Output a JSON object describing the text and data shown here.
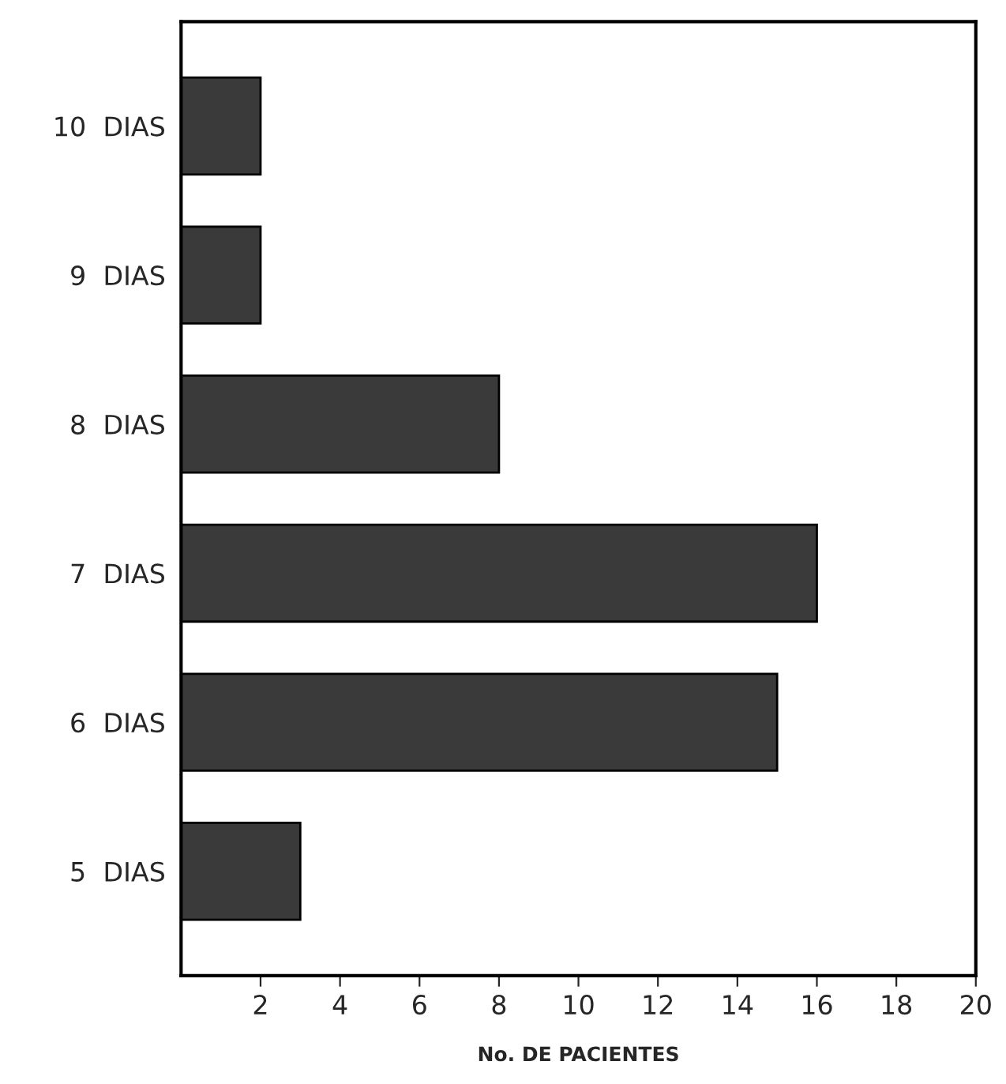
{
  "chart_data": {
    "type": "bar",
    "orientation": "horizontal",
    "xlabel": "No. DE PACIENTES",
    "categories": [
      "10  DIAS",
      "9  DIAS",
      "8  DIAS",
      "7  DIAS",
      "6  DIAS",
      "5  DIAS"
    ],
    "values": [
      2,
      2,
      8,
      16,
      15,
      3
    ],
    "color": "#3a3a3a",
    "xlim": [
      0,
      20
    ],
    "xticks": [
      2,
      4,
      6,
      8,
      10,
      12,
      14,
      16,
      18,
      20
    ],
    "grid": false
  }
}
